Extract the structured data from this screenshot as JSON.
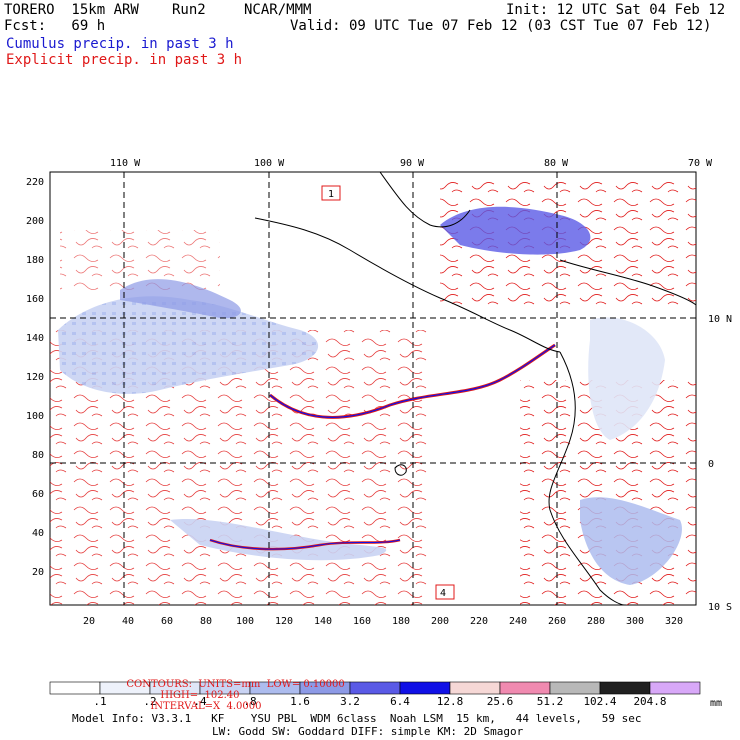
{
  "header": {
    "model": "TORERO  15km ARW",
    "run": "Run2",
    "center": "NCAR/MMM",
    "init": "Init: 12 UTC Sat 04 Feb 12",
    "fcst": "Fcst:   69 h",
    "valid": "Valid: 09 UTC Tue 07 Feb 12 (03 CST Tue 07 Feb 12)",
    "legend_cumulus": "Cumulus precip. in past 3 h",
    "legend_explicit": "Explicit precip. in past 3 h"
  },
  "map": {
    "lon_labels": [
      "110 W",
      "100 W",
      "90 W",
      "80 W",
      "70 W"
    ],
    "lat_labels": [
      "10 N",
      "0",
      "10 S"
    ],
    "y_ticks": [
      "220",
      "200",
      "180",
      "160",
      "140",
      "120",
      "100",
      "80",
      "60",
      "40",
      "20"
    ],
    "x_ticks": [
      "20",
      "40",
      "60",
      "80",
      "100",
      "120",
      "140",
      "160",
      "180",
      "200",
      "220",
      "240",
      "260",
      "280",
      "300",
      "320"
    ],
    "markers": [
      "1",
      "4"
    ]
  },
  "contours_line": {
    "label": "CONTOURS:  UNITS=mm  LOW= 0.10000",
    "high": "HIGH=  102.40",
    "interval": "INTERVAL=X  4.0000"
  },
  "colorbar": {
    "labels": [
      ".1",
      ".2",
      ".4",
      ".8",
      "1.6",
      "3.2",
      "6.4",
      "12.8",
      "25.6",
      "51.2",
      "102.4",
      "204.8"
    ],
    "units": "mm",
    "colors": [
      "#ffffff",
      "#eef2fb",
      "#dfe6f7",
      "#c9d3f3",
      "#adbcee",
      "#8d9ae6",
      "#5a5ae6",
      "#1010e6",
      "#f6d8d6",
      "#f08ab0",
      "#b8b8b8",
      "#202020",
      "#d8a8f8"
    ]
  },
  "footer": {
    "line1": "Model Info: V3.3.1   KF    YSU PBL  WDM 6class  Noah LSM  15 km,   44 levels,   59 sec",
    "line2": "LW: Godd SW: Goddard DIFF: simple KM: 2D Smagor"
  }
}
